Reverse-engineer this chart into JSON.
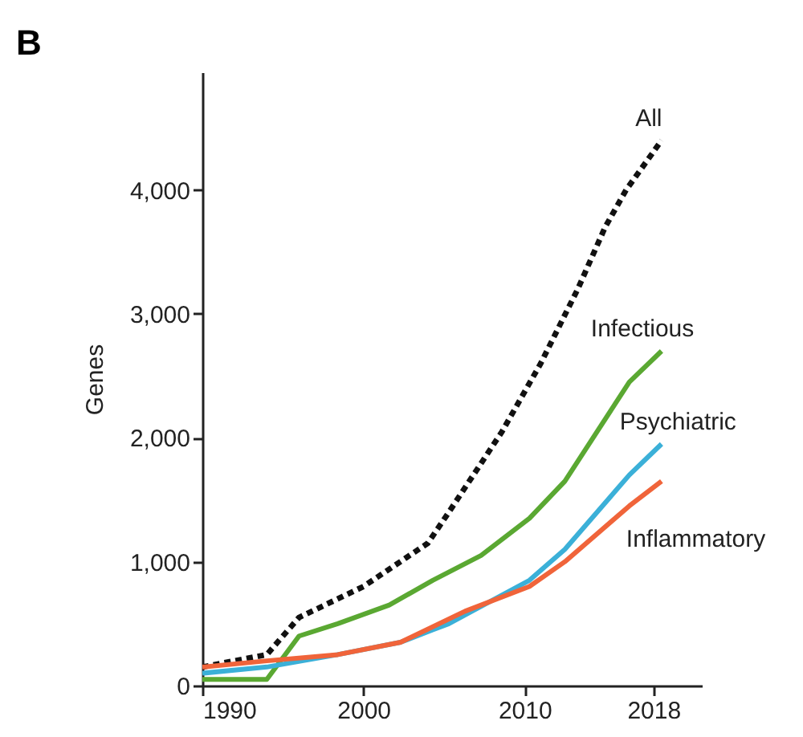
{
  "chart_data": {
    "type": "line",
    "title": "B",
    "ylabel": "Genes",
    "xlim": [
      1990,
      2021
    ],
    "xticks": [
      1990,
      2000,
      2010,
      2018
    ],
    "ylim": [
      0,
      4950
    ],
    "yticks": [
      0,
      {
        "value": 1000,
        "label": "1,000"
      },
      {
        "value": 2000,
        "label": "2,000"
      },
      {
        "value": 3000,
        "label": "3,000"
      },
      {
        "value": 4000,
        "label": "4,000"
      }
    ],
    "grid": false,
    "series": [
      {
        "name": "All",
        "color": "#111111",
        "line_style": "dashed",
        "x": [
          1990,
          1994,
          1996,
          2000,
          2004,
          2005.3,
          2008.6,
          2011,
          2013.3,
          2015,
          2016.3,
          2018.5
        ],
        "values": [
          150,
          250,
          550,
          800,
          1150,
          1400,
          2050,
          2600,
          3200,
          3700,
          4000,
          4400
        ]
      },
      {
        "name": "Infectious",
        "color": "#5aa832",
        "line_style": "solid",
        "x": [
          1990,
          1994,
          1996,
          1998.4,
          2001.6,
          2004.3,
          2007.3,
          2010.3,
          2012.5,
          2016.5,
          2018.5
        ],
        "values": [
          50,
          50,
          400,
          500,
          650,
          850,
          1050,
          1350,
          1650,
          2450,
          2700
        ]
      },
      {
        "name": "Psychiatric",
        "color": "#3bb0d8",
        "line_style": "solid",
        "x": [
          1990,
          1994,
          1998.4,
          2002.3,
          2004.3,
          2005.3,
          2010.3,
          2012.5,
          2016.5,
          2018.5
        ],
        "values": [
          100,
          150,
          250,
          350,
          450,
          500,
          850,
          1100,
          1700,
          1950
        ]
      },
      {
        "name": "Inflammatory",
        "color": "#f0643a",
        "line_style": "solid",
        "x": [
          1990,
          1994,
          1998.4,
          2002.3,
          2006.3,
          2010.3,
          2012.5,
          2016.5,
          2018.5
        ],
        "values": [
          150,
          200,
          250,
          350,
          600,
          800,
          1000,
          1450,
          1650
        ]
      }
    ]
  }
}
